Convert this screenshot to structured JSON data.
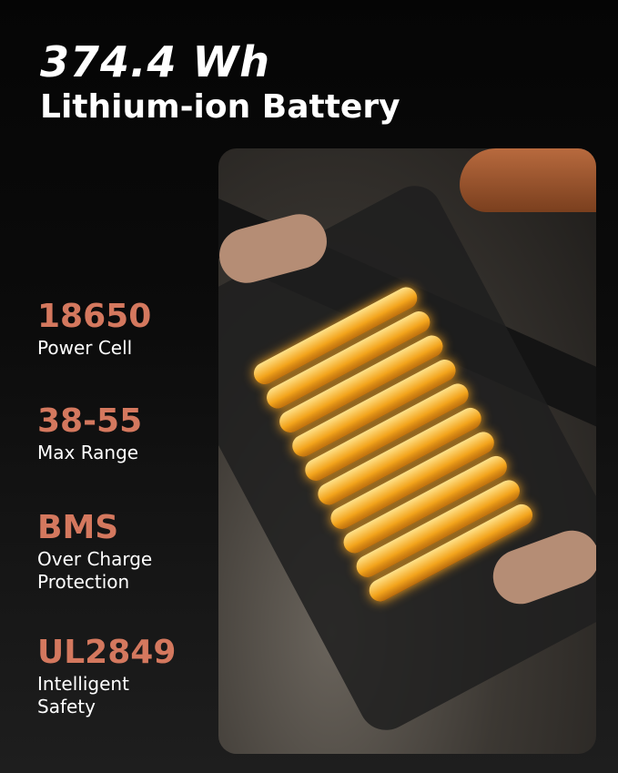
{
  "header": {
    "title": "374.4 Wh",
    "subtitle": "Lithium-ion Battery"
  },
  "specs": [
    {
      "value": "18650",
      "label": "Power Cell"
    },
    {
      "value": "38-55",
      "label": "Max Range"
    },
    {
      "value": "BMS",
      "label": "Over Charge Protection"
    },
    {
      "value": "UL2849",
      "label": "Intelligent Safety"
    }
  ],
  "colors": {
    "accent": "#d4785e",
    "background": "#0b0b0b",
    "text": "#ffffff"
  }
}
